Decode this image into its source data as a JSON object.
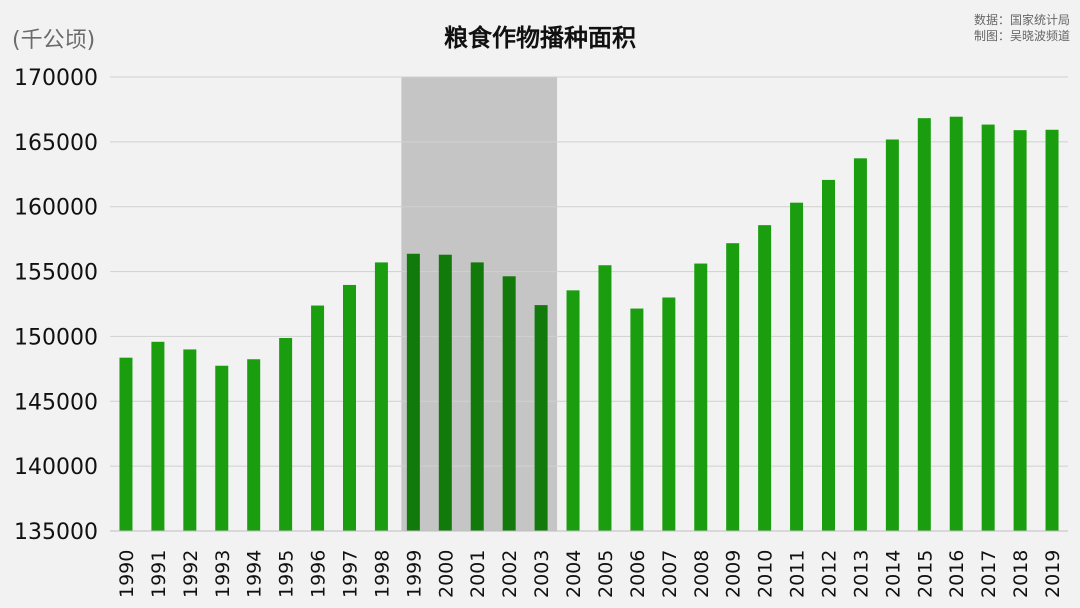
{
  "title": "粮食作物播种面积",
  "unit_label": "(千公顷)",
  "source_lines": [
    "数据：国家统计局",
    "制图：吴晓波频道"
  ],
  "colors": {
    "bar": "#1a9e0f",
    "bar_highlight": "#117a0a",
    "highlight_band": "#c5c5c5",
    "grid": "#d0d0d0",
    "background": "#f2f2f2"
  },
  "chart_data": {
    "type": "bar",
    "title": "粮食作物播种面积",
    "ylabel": "(千公顷)",
    "xlabel": "",
    "ylim": [
      135000,
      170000
    ],
    "yticks": [
      135000,
      140000,
      145000,
      150000,
      155000,
      160000,
      165000,
      170000
    ],
    "grid": true,
    "legend": "none",
    "highlight_range": [
      "1999",
      "2003"
    ],
    "categories": [
      "1990",
      "1991",
      "1992",
      "1993",
      "1994",
      "1995",
      "1996",
      "1997",
      "1998",
      "1999",
      "2000",
      "2001",
      "2002",
      "2003",
      "2004",
      "2005",
      "2006",
      "2007",
      "2008",
      "2009",
      "2010",
      "2011",
      "2012",
      "2013",
      "2014",
      "2015",
      "2016",
      "2017",
      "2018",
      "2019"
    ],
    "values": [
      148362,
      149586,
      148997,
      147741,
      148241,
      149879,
      152381,
      153969,
      155706,
      156373,
      156300,
      155708,
      154636,
      152415,
      153553,
      155488,
      152149,
      153001,
      155618,
      157187,
      158579,
      160311,
      162066,
      163732,
      165182,
      166826,
      166939,
      166332,
      165902,
      165931
    ]
  }
}
